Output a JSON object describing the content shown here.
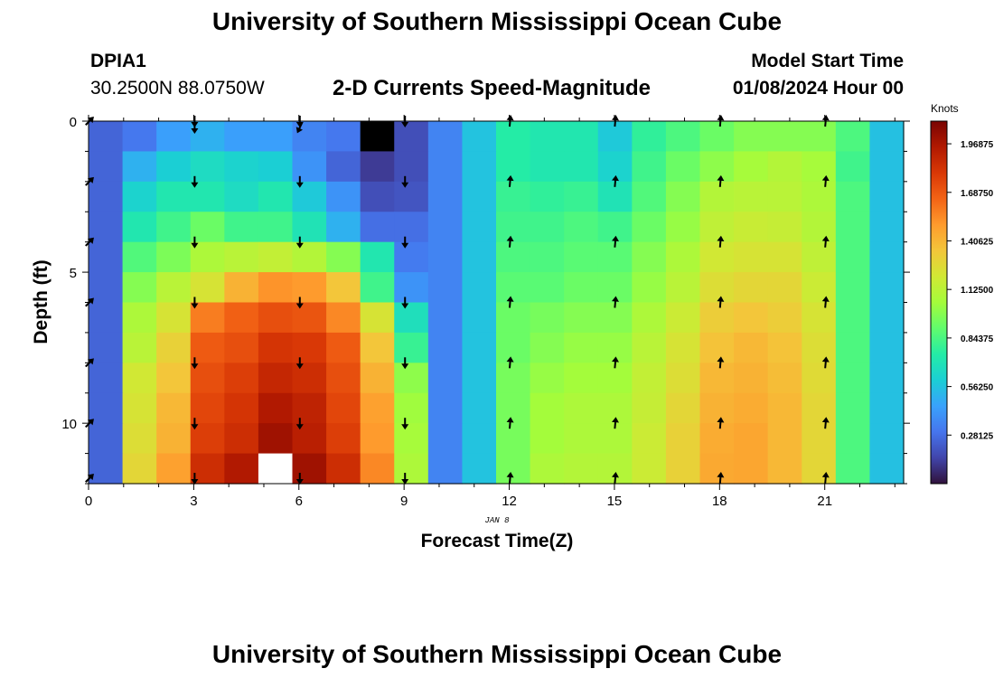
{
  "header": {
    "title": "University of Southern Mississippi Ocean Cube",
    "station": "DPIA1",
    "coords": "30.2500N  88.0750W",
    "subtitle": "2-D Currents Speed-Magnitude",
    "model_start_label": "Model Start Time",
    "model_start_value": "01/08/2024 Hour 00",
    "date_label": "JAN 8",
    "bottom_title": "University of Southern Mississippi Ocean Cube"
  },
  "colors": {
    "ramp": [
      "#30123b",
      "#4145ab",
      "#4675ed",
      "#39a2fc",
      "#1bcfd4",
      "#24eca6",
      "#61fc6c",
      "#a4fc3b",
      "#d1e834",
      "#f3c63a",
      "#fe9b2d",
      "#f36315",
      "#d93806",
      "#b11901",
      "#7a0402"
    ],
    "cbar_text": "#000000",
    "missing_dark": "#000000",
    "missing_light": "#ffffff"
  },
  "chart_data": {
    "type": "heatmap",
    "title": "2-D Currents Speed-Magnitude",
    "xlabel": "Forecast Time(Z)",
    "ylabel": "Depth (ft)",
    "xlim": [
      0,
      23.25
    ],
    "ylim": [
      0,
      12
    ],
    "x_ticks": [
      0,
      3,
      6,
      9,
      12,
      15,
      18,
      21
    ],
    "y_ticks": [
      0,
      5,
      10
    ],
    "vmin": 0,
    "vmax": 2.1,
    "colorbar": {
      "label": "Knots",
      "ticks": [
        "1.96875",
        "1.68750",
        "1.40625",
        "1.12500",
        "0.84375",
        "0.56250",
        "0.28125"
      ]
    },
    "missing_cells": [
      {
        "time_index": 8,
        "depth_index": 0,
        "shade": "dark"
      },
      {
        "time_index": 5,
        "depth_index": 11,
        "shade": "light"
      }
    ],
    "arrow_times": [
      0,
      3,
      6,
      9,
      12,
      15,
      18,
      21
    ],
    "arrow_depths": [
      0,
      2,
      4,
      6,
      8,
      10,
      12
    ],
    "arrow_direction_deg": [
      45,
      180,
      180,
      180,
      5,
      5,
      5,
      5
    ],
    "top_arrows_present": [
      false,
      true,
      true,
      false,
      false,
      false,
      false,
      false
    ],
    "top_arrow_direction_deg": [
      0,
      180,
      205,
      0,
      0,
      0,
      0,
      0
    ],
    "time_hours": [
      0,
      1,
      2,
      3,
      4,
      5,
      6,
      7,
      8,
      9,
      10,
      11,
      12,
      13,
      14,
      15,
      16,
      17,
      18,
      19,
      20,
      21,
      22,
      23
    ],
    "depth_ft": [
      0,
      1,
      2,
      3,
      4,
      5,
      6,
      7,
      8,
      9,
      10,
      11
    ],
    "speed_knots": [
      [
        0.25,
        0.31,
        0.44,
        0.5,
        0.44,
        0.44,
        0.35,
        0.31,
        0.12,
        0.18,
        0.35,
        0.56,
        0.75,
        0.72,
        0.72,
        0.58,
        0.78,
        0.85,
        0.92,
        0.98,
        0.98,
        0.98,
        0.85,
        0.55
      ],
      [
        0.25,
        0.5,
        0.6,
        0.66,
        0.62,
        0.6,
        0.4,
        0.25,
        0.12,
        0.18,
        0.35,
        0.56,
        0.75,
        0.72,
        0.72,
        0.62,
        0.82,
        0.92,
        1.0,
        1.06,
        1.1,
        1.06,
        0.82,
        0.55
      ],
      [
        0.25,
        0.62,
        0.72,
        0.72,
        0.66,
        0.72,
        0.58,
        0.4,
        0.18,
        0.2,
        0.35,
        0.56,
        0.8,
        0.78,
        0.8,
        0.7,
        0.86,
        0.98,
        1.1,
        1.12,
        1.12,
        1.08,
        0.85,
        0.55
      ],
      [
        0.25,
        0.72,
        0.82,
        0.92,
        0.82,
        0.82,
        0.7,
        0.5,
        0.28,
        0.28,
        0.35,
        0.56,
        0.82,
        0.82,
        0.85,
        0.82,
        0.92,
        1.02,
        1.14,
        1.17,
        1.16,
        1.1,
        0.85,
        0.55
      ],
      [
        0.25,
        0.86,
        0.96,
        1.08,
        1.12,
        1.15,
        1.1,
        0.98,
        0.72,
        0.32,
        0.35,
        0.56,
        0.85,
        0.85,
        0.88,
        0.88,
        0.98,
        1.08,
        1.2,
        1.22,
        1.22,
        1.14,
        0.85,
        0.55
      ],
      [
        0.25,
        0.98,
        1.12,
        1.22,
        1.42,
        1.52,
        1.5,
        1.35,
        0.82,
        0.4,
        0.35,
        0.56,
        0.88,
        0.88,
        0.92,
        0.92,
        1.02,
        1.12,
        1.25,
        1.28,
        1.28,
        1.18,
        0.85,
        0.55
      ],
      [
        0.25,
        1.08,
        1.22,
        1.58,
        1.66,
        1.72,
        1.7,
        1.55,
        1.22,
        0.68,
        0.35,
        0.56,
        0.92,
        0.95,
        0.98,
        0.98,
        1.08,
        1.18,
        1.32,
        1.35,
        1.32,
        1.22,
        0.85,
        0.55
      ],
      [
        0.25,
        1.12,
        1.3,
        1.68,
        1.72,
        1.82,
        1.8,
        1.68,
        1.35,
        0.8,
        0.35,
        0.56,
        0.92,
        0.98,
        1.02,
        1.02,
        1.12,
        1.22,
        1.36,
        1.4,
        1.36,
        1.25,
        0.85,
        0.55
      ],
      [
        0.25,
        1.2,
        1.35,
        1.72,
        1.78,
        1.88,
        1.85,
        1.72,
        1.42,
        1.0,
        0.35,
        0.56,
        0.95,
        1.02,
        1.05,
        1.05,
        1.15,
        1.25,
        1.4,
        1.42,
        1.38,
        1.26,
        0.85,
        0.55
      ],
      [
        0.25,
        1.22,
        1.4,
        1.75,
        1.82,
        1.95,
        1.9,
        1.75,
        1.48,
        1.04,
        0.35,
        0.56,
        0.95,
        1.05,
        1.08,
        1.08,
        1.16,
        1.28,
        1.42,
        1.44,
        1.4,
        1.28,
        0.85,
        0.55
      ],
      [
        0.25,
        1.25,
        1.42,
        1.78,
        1.85,
        2.0,
        1.92,
        1.78,
        1.5,
        1.06,
        0.35,
        0.56,
        0.95,
        1.05,
        1.08,
        1.08,
        1.18,
        1.3,
        1.44,
        1.46,
        1.4,
        1.28,
        0.85,
        0.55
      ],
      [
        0.25,
        1.28,
        1.48,
        1.85,
        1.95,
        2.05,
        2.0,
        1.85,
        1.55,
        1.08,
        0.35,
        0.56,
        0.95,
        1.08,
        1.1,
        1.1,
        1.18,
        1.3,
        1.45,
        1.46,
        1.4,
        1.28,
        0.85,
        0.55
      ]
    ]
  }
}
